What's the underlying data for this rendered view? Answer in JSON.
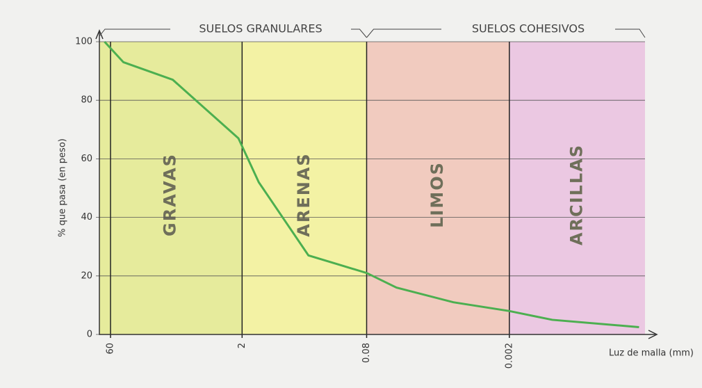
{
  "chart_data": {
    "type": "line",
    "header_left": "SUELOS GRANULARES",
    "header_right": "SUELOS COHESIVOS",
    "ylabel": "% que pasa (en peso)",
    "xlabel": "Luz de malla (mm)",
    "xlog": true,
    "xlim": [
      80,
      6e-05
    ],
    "xticks": [
      60,
      2,
      0.08,
      0.002
    ],
    "ylim": [
      0,
      100
    ],
    "yticks": [
      0,
      20,
      40,
      60,
      80,
      100
    ],
    "grid": true,
    "zones": [
      {
        "label": "GRAVAS",
        "color": "#e6eb9c"
      },
      {
        "label": "ARENAS",
        "color": "#f3f2a4"
      },
      {
        "label": "LIMOS",
        "color": "#f1cbbf"
      },
      {
        "label": "ARCILLAS",
        "color": "#ebc8e2"
      }
    ],
    "x": [
      70,
      43,
      12,
      2.2,
      1.3,
      0.36,
      0.08,
      0.037,
      0.0085,
      0.002,
      0.00066,
      7e-05
    ],
    "values": [
      100,
      93,
      87,
      67,
      52,
      27,
      21,
      16,
      11,
      8,
      5,
      2.5
    ],
    "color": "#4caf50"
  }
}
